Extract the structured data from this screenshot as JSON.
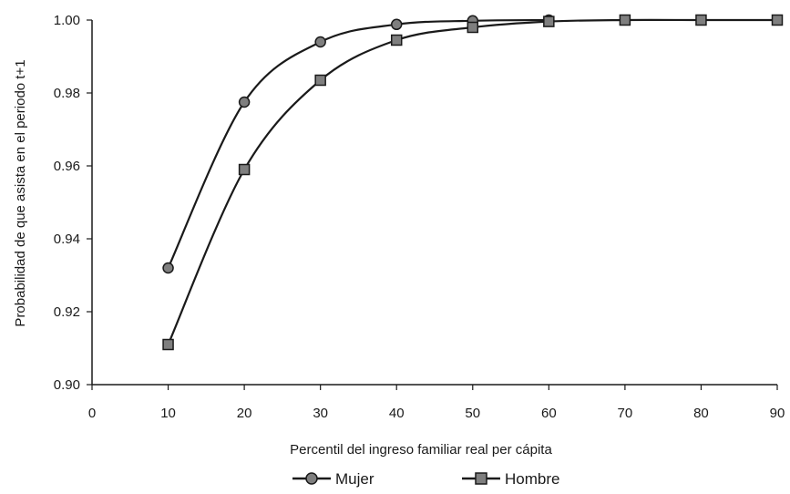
{
  "chart_data": {
    "type": "line",
    "xlabel": "Percentil del ingreso familiar real per cápita",
    "ylabel": "Probabilidad de que asista en el periodo t+1",
    "xlim": [
      0,
      90
    ],
    "ylim": [
      0.9,
      1.0
    ],
    "x_ticks": [
      0,
      10,
      20,
      30,
      40,
      50,
      60,
      70,
      80,
      90
    ],
    "y_ticks": [
      "0.90",
      "0.92",
      "0.94",
      "0.96",
      "0.98",
      "1.00"
    ],
    "grid": false,
    "legend_position": "bottom",
    "series": [
      {
        "name": "Mujer",
        "marker": "circle",
        "color": "#7f7f7f",
        "x": [
          10,
          20,
          30,
          40,
          50,
          60
        ],
        "y": [
          0.932,
          0.9775,
          0.994,
          0.9988,
          0.9998,
          1.0
        ]
      },
      {
        "name": "Hombre",
        "marker": "square",
        "color": "#7f7f7f",
        "x": [
          10,
          20,
          30,
          40,
          50,
          60,
          70,
          80,
          90
        ],
        "y": [
          0.911,
          0.959,
          0.9835,
          0.9945,
          0.998,
          0.9996,
          1.0,
          1.0,
          1.0
        ]
      }
    ]
  }
}
